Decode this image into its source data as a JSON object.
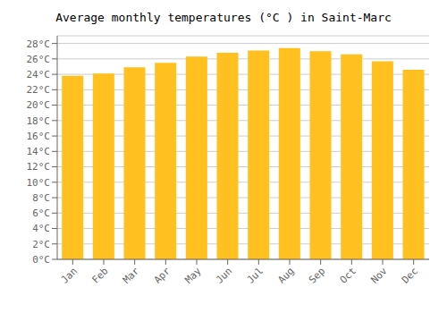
{
  "chart_data": {
    "type": "bar",
    "title": "Average monthly temperatures (°C ) in Saint-Marc",
    "categories": [
      "Jan",
      "Feb",
      "Mar",
      "Apr",
      "May",
      "Jun",
      "Jul",
      "Aug",
      "Sep",
      "Oct",
      "Nov",
      "Dec"
    ],
    "values": [
      23.8,
      24.1,
      24.9,
      25.5,
      26.3,
      26.8,
      27.1,
      27.4,
      27.0,
      26.6,
      25.7,
      24.6
    ],
    "color": "#FFC020",
    "ylim": [
      0,
      29
    ],
    "yticks": [
      {
        "value": 0,
        "label": "0°C"
      },
      {
        "value": 2,
        "label": "2°C"
      },
      {
        "value": 4,
        "label": "4°C"
      },
      {
        "value": 6,
        "label": "6°C"
      },
      {
        "value": 8,
        "label": "8°C"
      },
      {
        "value": 10,
        "label": "10°C"
      },
      {
        "value": 12,
        "label": "12°C"
      },
      {
        "value": 14,
        "label": "14°C"
      },
      {
        "value": 16,
        "label": "16°C"
      },
      {
        "value": 18,
        "label": "18°C"
      },
      {
        "value": 20,
        "label": "20°C"
      },
      {
        "value": 22,
        "label": "22°C"
      },
      {
        "value": 24,
        "label": "24°C"
      },
      {
        "value": 26,
        "label": "26°C"
      },
      {
        "value": 28,
        "label": "28°C"
      }
    ],
    "grid": true
  }
}
